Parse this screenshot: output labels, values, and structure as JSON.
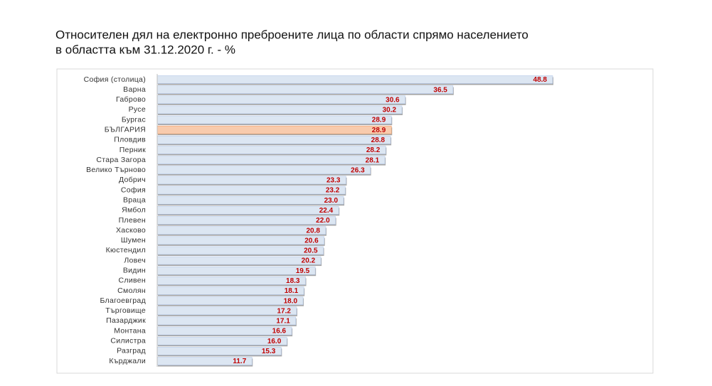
{
  "chart_data": {
    "type": "bar",
    "orientation": "horizontal",
    "title": [
      "Относителен дял на електронно преброените лица по области спрямо населението",
      "в областта към 31.12.2020 г. - %"
    ],
    "categories": [
      "София (столица)",
      "Варна",
      "Габрово",
      "Русе",
      "Бургас",
      "БЪЛГАРИЯ",
      "Пловдив",
      "Перник",
      "Стара Загора",
      "Велико Търново",
      "Добрич",
      "София",
      "Враца",
      "Ямбол",
      "Плевен",
      "Хасково",
      "Шумен",
      "Кюстендил",
      "Ловеч",
      "Видин",
      "Сливен",
      "Смолян",
      "Благоевград",
      "Търговище",
      "Пазарджик",
      "Монтана",
      "Силистра",
      "Разград",
      "Кърджали"
    ],
    "values": [
      48.8,
      36.5,
      30.6,
      30.2,
      28.9,
      28.9,
      28.8,
      28.2,
      28.1,
      26.3,
      23.3,
      23.2,
      23.0,
      22.4,
      22.0,
      20.8,
      20.6,
      20.5,
      20.2,
      19.5,
      18.3,
      18.1,
      18.0,
      17.2,
      17.1,
      16.6,
      16.0,
      15.3,
      11.7
    ],
    "value_labels": [
      "48.8",
      "36.5",
      "30.6",
      "30.2",
      "28.9",
      "28.9",
      "28.8",
      "28.2",
      "28.1",
      "26.3",
      "23.3",
      "23.2",
      "23.0",
      "22.4",
      "22.0",
      "20.8",
      "20.6",
      "20.5",
      "20.2",
      "19.5",
      "18.3",
      "18.1",
      "18.0",
      "17.2",
      "17.1",
      "16.6",
      "16.0",
      "15.3",
      "11.7"
    ],
    "colors": [
      "#dce6f2",
      "#dce6f2",
      "#dce6f2",
      "#dce6f2",
      "#dce6f2",
      "#f8cbad",
      "#dce6f2",
      "#dce6f2",
      "#dce6f2",
      "#dce6f2",
      "#dce6f2",
      "#dce6f2",
      "#dce6f2",
      "#dce6f2",
      "#dce6f2",
      "#dce6f2",
      "#dce6f2",
      "#dce6f2",
      "#dce6f2",
      "#dce6f2",
      "#dce6f2",
      "#dce6f2",
      "#dce6f2",
      "#dce6f2",
      "#dce6f2",
      "#dce6f2",
      "#dce6f2",
      "#dce6f2",
      "#dce6f2"
    ]
  }
}
